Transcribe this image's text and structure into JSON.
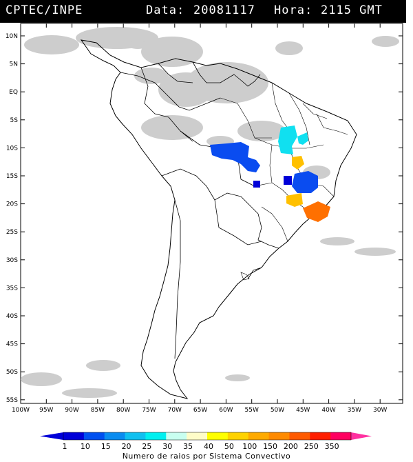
{
  "header": {
    "source": "CPTEC/INPE",
    "date_label": "Data:",
    "date": "20081117",
    "time_label": "Hora:",
    "time": "2115 GMT"
  },
  "map": {
    "lat_labels": [
      "10N",
      "5N",
      "EQ",
      "5S",
      "10S",
      "15S",
      "20S",
      "25S",
      "30S",
      "35S",
      "40S",
      "45S",
      "50S",
      "55S"
    ],
    "lon_labels": [
      "100W",
      "95W",
      "90W",
      "85W",
      "80W",
      "75W",
      "70W",
      "65W",
      "60W",
      "55W",
      "50W",
      "45W",
      "40W",
      "35W",
      "30W"
    ]
  },
  "colorbar": {
    "caption": "Numero de raios por Sistema Convectivo",
    "ticks": [
      "1",
      "10",
      "15",
      "20",
      "25",
      "30",
      "35",
      "40",
      "50",
      "100",
      "150",
      "200",
      "250",
      "350"
    ],
    "colors": [
      "#0000d8",
      "#0050f0",
      "#0a8cf0",
      "#10c0f0",
      "#00f0f0",
      "#c8fff0",
      "#fffcc8",
      "#ffff00",
      "#ffd200",
      "#ffaa00",
      "#ff8a00",
      "#ff5a00",
      "#ff1e00",
      "#ff0060"
    ]
  },
  "legend_colors": {
    "cloud": "#c8c8c8",
    "blue_cells": "#0a4cf0",
    "dark_blue_cells": "#0000d8",
    "cyan_cells": "#10e0f0",
    "yellow_cells": "#ffc000",
    "orange_cells": "#ff7000"
  }
}
